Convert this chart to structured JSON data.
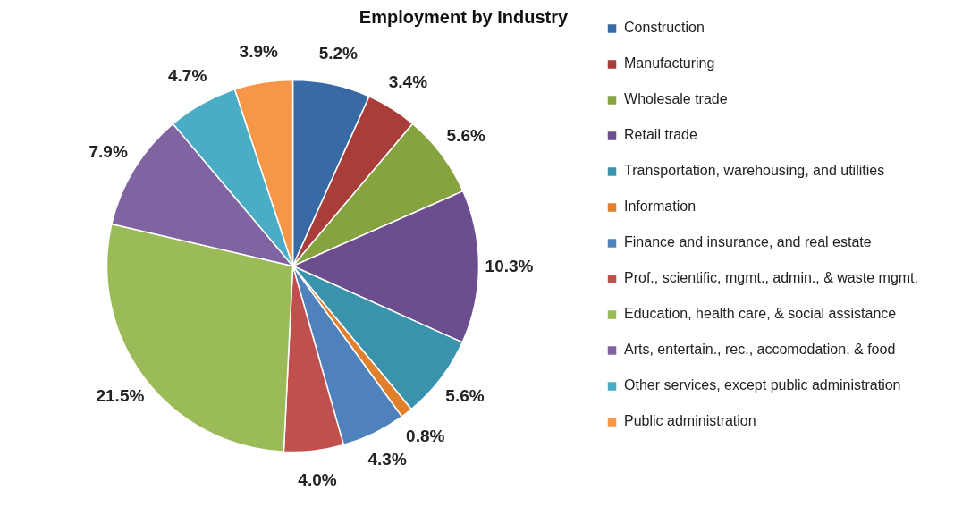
{
  "chart_data": {
    "type": "pie",
    "title": "Employment by Industry",
    "categories": [
      "Construction",
      "Manufacturing",
      "Wholesale trade",
      "Retail trade",
      "Transportation, warehousing, and utilities",
      "Information",
      "Finance and insurance, and real estate",
      "Prof., scientific, mgmt., admin., & waste mgmt.",
      "Education, health care, & social assistance",
      "Arts, entertain., rec., accomodation, & food",
      "Other services, except public administration",
      "Public administration"
    ],
    "values": [
      5.2,
      3.4,
      5.6,
      10.3,
      5.6,
      0.8,
      4.3,
      4.0,
      21.5,
      7.9,
      4.7,
      3.9
    ],
    "value_labels": [
      "5.2%",
      "3.4%",
      "5.6%",
      "10.3%",
      "5.6%",
      "0.8%",
      "4.3%",
      "4.0%",
      "21.5%",
      "7.9%",
      "4.7%",
      "3.9%"
    ],
    "colors": [
      "#386aa5",
      "#a83d3a",
      "#86a33f",
      "#6c4d8e",
      "#3a93ad",
      "#e0802c",
      "#4f81bd",
      "#c0504d",
      "#9bbb59",
      "#8064a2",
      "#4bacc6",
      "#f79646"
    ],
    "legend": "right"
  }
}
